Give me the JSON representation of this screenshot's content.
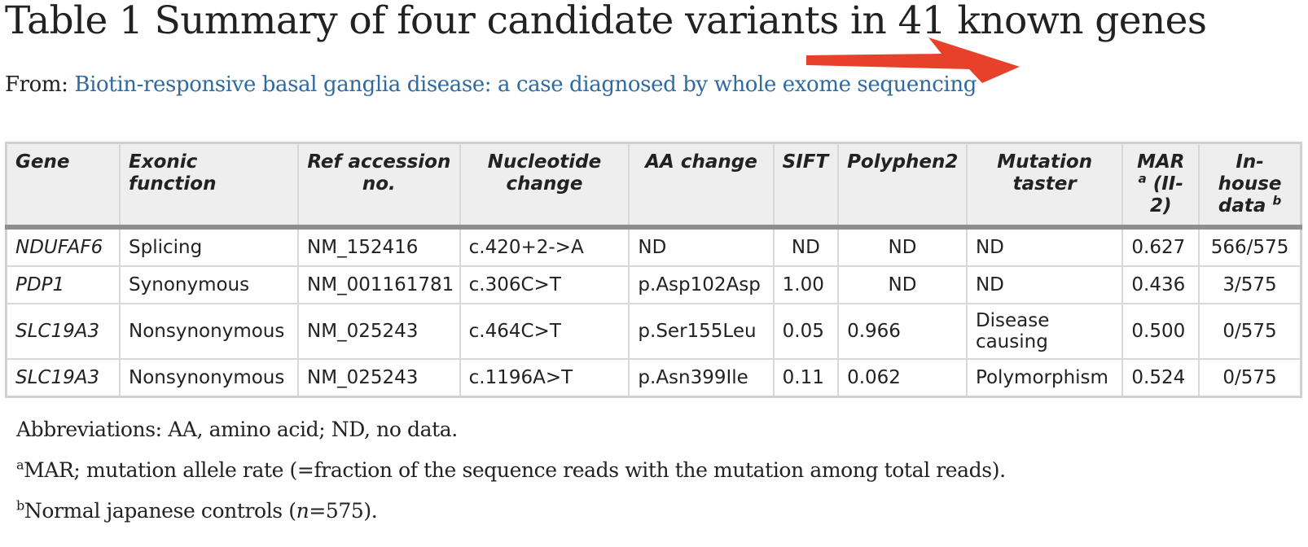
{
  "title": "Table 1 Summary of four candidate variants in 41 known genes",
  "from": {
    "label": "From:",
    "link_text": "Biotin-responsive basal ganglia disease: a case diagnosed by whole exome sequencing"
  },
  "colors": {
    "link": "#2f6aa0",
    "arrow": "#e8412b",
    "header_bg": "#eeeeee"
  },
  "table": {
    "headers": {
      "gene": "Gene",
      "exonic": "Exonic function",
      "ref": "Ref accession no.",
      "nucleotide": "Nucleotide change",
      "aa": "AA change",
      "sift": "SIFT",
      "polyphen": "Polyphen2",
      "taster": "Mutation taster",
      "mar": "MAR",
      "mar_sup": "a",
      "mar_tail": " (II-2)",
      "inhouse": "In-house data",
      "inhouse_sup": "b"
    },
    "rows": [
      {
        "gene": "NDUFAF6",
        "exonic": "Splicing",
        "ref": "NM_152416",
        "nucleotide": "c.420+2->A",
        "aa": "ND",
        "sift": "ND",
        "polyphen": "ND",
        "taster": "ND",
        "mar": "0.627",
        "inhouse": "566/575"
      },
      {
        "gene": "PDP1",
        "exonic": "Synonymous",
        "ref": "NM_001161781",
        "nucleotide": "c.306C>T",
        "aa": "p.Asp102Asp",
        "sift": "1.00",
        "polyphen": "ND",
        "taster": "ND",
        "mar": "0.436",
        "inhouse": "3/575"
      },
      {
        "gene": "SLC19A3",
        "exonic": "Nonsynonymous",
        "ref": "NM_025243",
        "nucleotide": "c.464C>T",
        "aa": "p.Ser155Leu",
        "sift": "0.05",
        "polyphen": "0.966",
        "taster": "Disease causing",
        "mar": "0.500",
        "inhouse": "0/575"
      },
      {
        "gene": "SLC19A3",
        "exonic": "Nonsynonymous",
        "ref": "NM_025243",
        "nucleotide": "c.1196A>T",
        "aa": "p.Asn399Ile",
        "sift": "0.11",
        "polyphen": "0.062",
        "taster": "Polymorphism",
        "mar": "0.524",
        "inhouse": "0/575"
      }
    ]
  },
  "notes": {
    "abbreviations": "Abbreviations: AA, amino acid; ND, no data.",
    "a_sup": "a",
    "a_text": "MAR; mutation allele rate (=fraction of the sequence reads with the mutation among total reads).",
    "b_sup": "b",
    "b_text_1": "Normal japanese controls (",
    "b_n": "n",
    "b_text_2": "=575)."
  }
}
